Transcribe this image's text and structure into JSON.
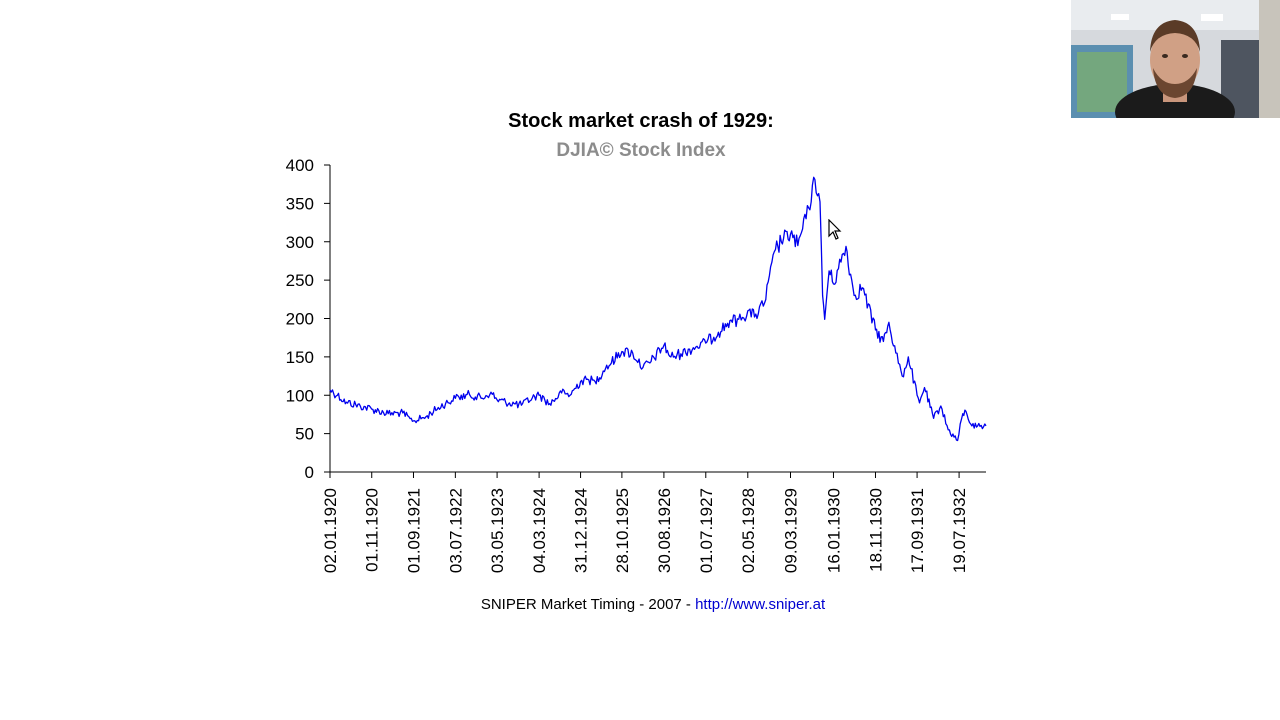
{
  "chart_data": {
    "type": "line",
    "title": "Stock market crash of 1929:",
    "subtitle": "DJIA© Stock Index",
    "ylim": [
      0,
      400
    ],
    "yticks": [
      0,
      50,
      100,
      150,
      200,
      250,
      300,
      350,
      400
    ],
    "xlim": [
      "1920-01-02",
      "1933-01-31"
    ],
    "xtick_labels": [
      "02.01.1920",
      "01.11.1920",
      "01.09.1921",
      "03.07.1922",
      "03.05.1923",
      "04.03.1924",
      "31.12.1924",
      "28.10.1925",
      "30.08.1926",
      "01.07.1927",
      "02.05.1928",
      "09.03.1929",
      "16.01.1930",
      "18.11.1930",
      "17.09.1931",
      "19.07.1932"
    ],
    "grid": false,
    "series": [
      {
        "color": "#0000ee",
        "x": [
          "1920-01-02",
          "1920-02-25",
          "1920-05-01",
          "1920-08-10",
          "1920-11-01",
          "1921-03-01",
          "1921-06-15",
          "1921-08-24",
          "1921-12-01",
          "1922-03-01",
          "1922-07-03",
          "1922-10-14",
          "1923-01-15",
          "1923-03-20",
          "1923-05-03",
          "1923-08-01",
          "1923-10-27",
          "1924-01-15",
          "1924-03-04",
          "1924-05-20",
          "1924-08-15",
          "1924-10-15",
          "1924-12-31",
          "1925-03-01",
          "1925-04-15",
          "1925-07-01",
          "1925-10-28",
          "1926-01-15",
          "1926-03-30",
          "1926-05-20",
          "1926-08-30",
          "1926-10-20",
          "1927-01-01",
          "1927-04-01",
          "1927-07-01",
          "1927-10-01",
          "1928-01-01",
          "1928-03-15",
          "1928-05-02",
          "1928-06-20",
          "1928-09-01",
          "1928-11-20",
          "1929-01-01",
          "1929-03-09",
          "1929-05-01",
          "1929-07-01",
          "1929-09-03",
          "1929-10-10",
          "1929-10-29",
          "1929-11-13",
          "1929-12-15",
          "1930-01-16",
          "1930-04-17",
          "1930-06-15",
          "1930-08-15",
          "1930-11-18",
          "1931-01-15",
          "1931-02-24",
          "1931-04-15",
          "1931-06-01",
          "1931-07-15",
          "1931-09-17",
          "1931-10-05",
          "1931-11-10",
          "1932-01-15",
          "1932-03-08",
          "1932-05-01",
          "1932-07-08",
          "1932-08-15",
          "1932-09-07",
          "1932-10-20",
          "1932-12-01",
          "1933-01-31"
        ],
        "y": [
          107,
          100,
          91,
          86,
          82,
          76,
          77,
          66,
          72,
          84,
          96,
          101,
          96,
          104,
          94,
          90,
          87,
          97,
          100,
          89,
          103,
          100,
          118,
          120,
          118,
          135,
          157,
          155,
          136,
          142,
          165,
          150,
          154,
          162,
          168,
          182,
          198,
          198,
          210,
          202,
          220,
          290,
          300,
          310,
          295,
          330,
          381,
          352,
          230,
          199,
          262,
          245,
          294,
          230,
          240,
          185,
          170,
          195,
          155,
          125,
          150,
          100,
          90,
          110,
          70,
          86,
          55,
          41,
          76,
          79,
          60,
          60,
          60
        ]
      }
    ],
    "footer_text": "SNIPER Market Timing - 2007 - ",
    "footer_link": "http://www.sniper.at"
  }
}
